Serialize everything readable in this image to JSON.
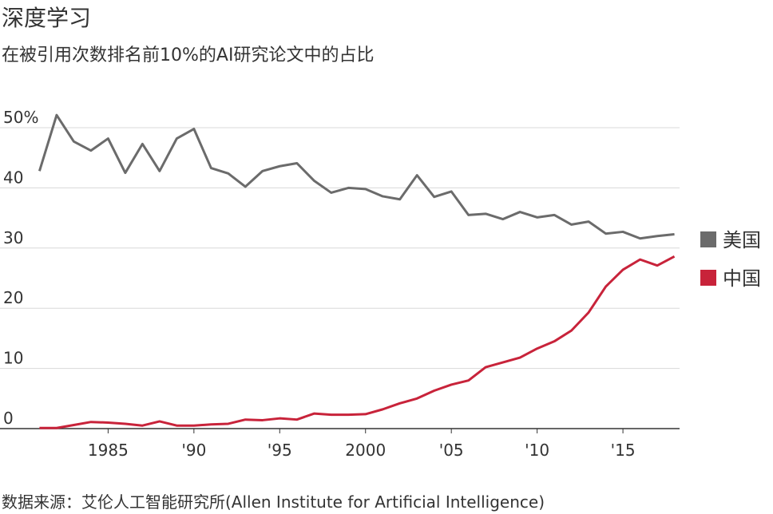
{
  "chart_data": {
    "type": "line",
    "title": "深度学习",
    "subtitle": "在被引用次数排名前10%的AI研究论文中的占比",
    "source": "数据来源：艾伦人工智能研究所(Allen Institute for Artificial Intelligence)",
    "x": [
      1981,
      1982,
      1983,
      1984,
      1985,
      1986,
      1987,
      1988,
      1989,
      1990,
      1991,
      1992,
      1993,
      1994,
      1995,
      1996,
      1997,
      1998,
      1999,
      2000,
      2001,
      2002,
      2003,
      2004,
      2005,
      2006,
      2007,
      2008,
      2009,
      2010,
      2011,
      2012,
      2013,
      2014,
      2015,
      2016,
      2017,
      2018
    ],
    "series": [
      {
        "name": "美国",
        "color": "#6b6b6b",
        "values": [
          42.8,
          52.1,
          47.7,
          46.2,
          48.2,
          42.5,
          47.3,
          42.8,
          48.2,
          49.8,
          43.3,
          42.4,
          40.2,
          42.8,
          43.6,
          44.1,
          41.2,
          39.2,
          40.0,
          39.8,
          38.6,
          38.1,
          42.1,
          38.5,
          39.4,
          35.5,
          35.7,
          34.8,
          36.0,
          35.1,
          35.5,
          33.9,
          34.4,
          32.4,
          32.7,
          31.6,
          32.0,
          32.3
        ]
      },
      {
        "name": "中国",
        "color": "#c8233a",
        "values": [
          0.1,
          0.1,
          0.6,
          1.1,
          1.0,
          0.8,
          0.5,
          1.2,
          0.5,
          0.5,
          0.7,
          0.8,
          1.5,
          1.4,
          1.7,
          1.5,
          2.5,
          2.3,
          2.3,
          2.4,
          3.2,
          4.2,
          5.0,
          6.3,
          7.3,
          8.0,
          10.2,
          11.0,
          11.8,
          13.3,
          14.5,
          16.3,
          19.3,
          23.6,
          26.4,
          28.1,
          27.1,
          28.6
        ]
      }
    ],
    "xlim": [
      1978.7,
      2018.3
    ],
    "xticks": [
      {
        "value": 1985,
        "label": "1985"
      },
      {
        "value": 1990,
        "label": "'90"
      },
      {
        "value": 1995,
        "label": "'95"
      },
      {
        "value": 2000,
        "label": "2000"
      },
      {
        "value": 2005,
        "label": "'05"
      },
      {
        "value": 2010,
        "label": "'10"
      },
      {
        "value": 2015,
        "label": "'15"
      }
    ],
    "ylim": [
      0,
      50
    ],
    "yticks": [
      0,
      10,
      20,
      30,
      40,
      {
        "value": 50,
        "label": "50%"
      }
    ],
    "grid": true,
    "legend": "right"
  }
}
